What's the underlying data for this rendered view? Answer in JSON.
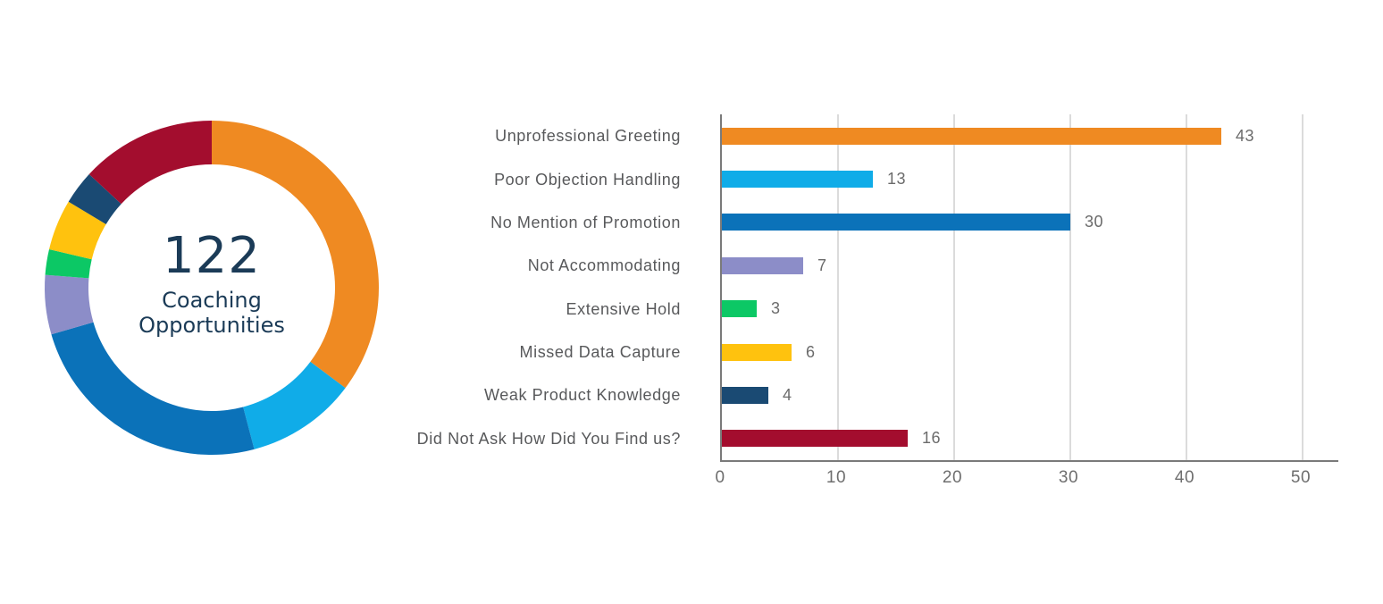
{
  "page": {
    "background": "#ffffff"
  },
  "palette": {
    "orange": "#EF8A22",
    "light_blue": "#10ACE8",
    "blue": "#0B72B9",
    "purple": "#8C8DC8",
    "green": "#0CC865",
    "yellow": "#FFC20E",
    "navy": "#1A4A73",
    "dark_red": "#A30D2E",
    "center_text": "#1B3B57",
    "category_label": "#58595B",
    "value_label": "#6B6B6B",
    "tick_label": "#6E6E6E",
    "axis_line": "#7A7A7A",
    "gridline": "#DBDBDB"
  },
  "chart_data": [
    {
      "type": "pie",
      "style": "donut",
      "start_angle_deg": 0,
      "direction": "clockwise",
      "labels": [
        "Unprofessional Greeting",
        "Poor Objection Handling",
        "No Mention of Promotion",
        "Not Accommodating",
        "Extensive Hold",
        "Missed Data Capture",
        "Weak Product Knowledge",
        "Did Not Ask How Did You Find us?"
      ],
      "values": [
        43,
        13,
        30,
        7,
        3,
        6,
        4,
        16
      ],
      "colors": [
        "#EF8A22",
        "#10ACE8",
        "#0B72B9",
        "#8C8DC8",
        "#0CC865",
        "#FFC20E",
        "#1A4A73",
        "#A30D2E"
      ],
      "total": 122,
      "center_value": "122",
      "center_label": "Coaching Opportunities",
      "legend": "none",
      "title": ""
    },
    {
      "type": "bar",
      "orientation": "horizontal",
      "categories": [
        "Unprofessional Greeting",
        "Poor Objection Handling",
        "No Mention of Promotion",
        "Not Accommodating",
        "Extensive Hold",
        "Missed Data Capture",
        "Weak Product Knowledge",
        "Did Not Ask How Did You Find us?"
      ],
      "values": [
        43,
        13,
        30,
        7,
        3,
        6,
        4,
        16
      ],
      "colors": [
        "#EF8A22",
        "#10ACE8",
        "#0B72B9",
        "#8C8DC8",
        "#0CC865",
        "#FFC20E",
        "#1A4A73",
        "#A30D2E"
      ],
      "data_labels": [
        43,
        13,
        30,
        7,
        3,
        6,
        4,
        16
      ],
      "xlim": [
        0,
        53
      ],
      "xticks": [
        0,
        10,
        20,
        30,
        40,
        50
      ],
      "grid": true,
      "legend": "none",
      "title": "",
      "xlabel": "",
      "ylabel": ""
    }
  ]
}
